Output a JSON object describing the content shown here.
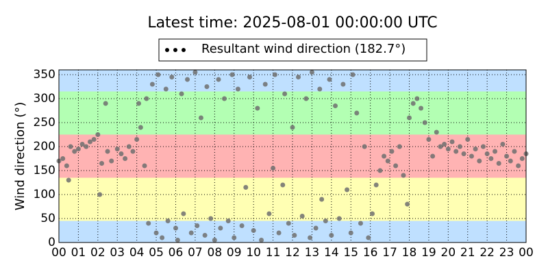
{
  "chart_data": {
    "type": "scatter",
    "title": "Latest time: 2025-08-01 00:00:00 UTC",
    "y_label": "Wind direction (°)",
    "xlim": [
      0,
      24
    ],
    "ylim": [
      0,
      360
    ],
    "xticks": [
      {
        "value": 0,
        "label": "00"
      },
      {
        "value": 1,
        "label": "01"
      },
      {
        "value": 2,
        "label": "02"
      },
      {
        "value": 3,
        "label": "03"
      },
      {
        "value": 4,
        "label": "04"
      },
      {
        "value": 5,
        "label": "05"
      },
      {
        "value": 6,
        "label": "06"
      },
      {
        "value": 7,
        "label": "07"
      },
      {
        "value": 8,
        "label": "08"
      },
      {
        "value": 9,
        "label": "09"
      },
      {
        "value": 10,
        "label": "10"
      },
      {
        "value": 11,
        "label": "11"
      },
      {
        "value": 12,
        "label": "12"
      },
      {
        "value": 13,
        "label": "13"
      },
      {
        "value": 14,
        "label": "14"
      },
      {
        "value": 15,
        "label": "15"
      },
      {
        "value": 16,
        "label": "16"
      },
      {
        "value": 17,
        "label": "17"
      },
      {
        "value": 18,
        "label": "18"
      },
      {
        "value": 19,
        "label": "19"
      },
      {
        "value": 20,
        "label": "20"
      },
      {
        "value": 21,
        "label": "21"
      },
      {
        "value": 22,
        "label": "22"
      },
      {
        "value": 23,
        "label": "23"
      },
      {
        "value": 24,
        "label": "00"
      }
    ],
    "yticks": [
      0,
      50,
      100,
      150,
      200,
      250,
      300,
      350
    ],
    "grid": true,
    "bands": [
      {
        "from": 0,
        "to": 45,
        "color": "#bfe0ff"
      },
      {
        "from": 45,
        "to": 135,
        "color": "#ffffb3"
      },
      {
        "from": 135,
        "to": 225,
        "color": "#ffb3b3"
      },
      {
        "from": 225,
        "to": 315,
        "color": "#b3ffb3"
      },
      {
        "from": 315,
        "to": 360,
        "color": "#bfe0ff"
      }
    ],
    "legend": "upper center",
    "series": [
      {
        "name": "Resultant wind direction (182.7°)",
        "color": "#6e6e6e",
        "x": [
          0.0,
          0.2,
          0.4,
          0.5,
          0.6,
          0.8,
          1.0,
          1.2,
          1.4,
          1.6,
          1.8,
          2.0,
          2.1,
          2.2,
          2.4,
          2.5,
          2.7,
          3.0,
          3.2,
          3.4,
          3.6,
          3.8,
          4.0,
          4.1,
          4.2,
          4.4,
          4.5,
          4.6,
          4.8,
          5.0,
          5.1,
          5.3,
          5.5,
          5.6,
          5.8,
          6.0,
          6.1,
          6.3,
          6.4,
          6.6,
          6.8,
          7.0,
          7.1,
          7.3,
          7.5,
          7.6,
          7.8,
          8.0,
          8.2,
          8.3,
          8.5,
          8.7,
          8.9,
          9.0,
          9.2,
          9.4,
          9.6,
          9.8,
          10.0,
          10.2,
          10.4,
          10.6,
          10.8,
          11.0,
          11.1,
          11.3,
          11.5,
          11.6,
          11.8,
          12.0,
          12.1,
          12.3,
          12.5,
          12.7,
          12.9,
          13.0,
          13.2,
          13.4,
          13.5,
          13.7,
          13.9,
          14.0,
          14.2,
          14.4,
          14.6,
          14.8,
          15.0,
          15.1,
          15.3,
          15.5,
          15.7,
          15.9,
          16.1,
          16.3,
          16.5,
          16.7,
          16.9,
          17.1,
          17.3,
          17.5,
          17.7,
          17.9,
          18.0,
          18.2,
          18.4,
          18.6,
          18.8,
          19.0,
          19.2,
          19.4,
          19.6,
          19.8,
          20.0,
          20.2,
          20.4,
          20.6,
          20.8,
          21.0,
          21.2,
          21.4,
          21.6,
          21.8,
          22.0,
          22.2,
          22.4,
          22.6,
          22.8,
          23.0,
          23.2,
          23.4,
          23.6,
          23.8,
          24.0
        ],
        "values": [
          170,
          175,
          160,
          130,
          200,
          190,
          195,
          205,
          200,
          210,
          215,
          225,
          100,
          165,
          290,
          190,
          170,
          195,
          185,
          175,
          200,
          190,
          215,
          290,
          240,
          160,
          300,
          40,
          330,
          20,
          350,
          10,
          320,
          45,
          345,
          30,
          5,
          310,
          60,
          340,
          20,
          355,
          35,
          260,
          15,
          325,
          50,
          5,
          340,
          30,
          300,
          45,
          350,
          10,
          320,
          35,
          115,
          345,
          25,
          280,
          5,
          330,
          60,
          155,
          350,
          20,
          120,
          310,
          40,
          240,
          15,
          345,
          55,
          300,
          10,
          355,
          30,
          320,
          90,
          45,
          340,
          15,
          285,
          50,
          330,
          110,
          20,
          350,
          270,
          40,
          200,
          10,
          60,
          120,
          150,
          180,
          170,
          190,
          160,
          200,
          140,
          80,
          260,
          290,
          300,
          280,
          250,
          215,
          180,
          230,
          200,
          205,
          195,
          210,
          190,
          200,
          185,
          215,
          180,
          195,
          170,
          200,
          185,
          175,
          190,
          165,
          205,
          180,
          170,
          190,
          160,
          175,
          185
        ]
      }
    ]
  }
}
